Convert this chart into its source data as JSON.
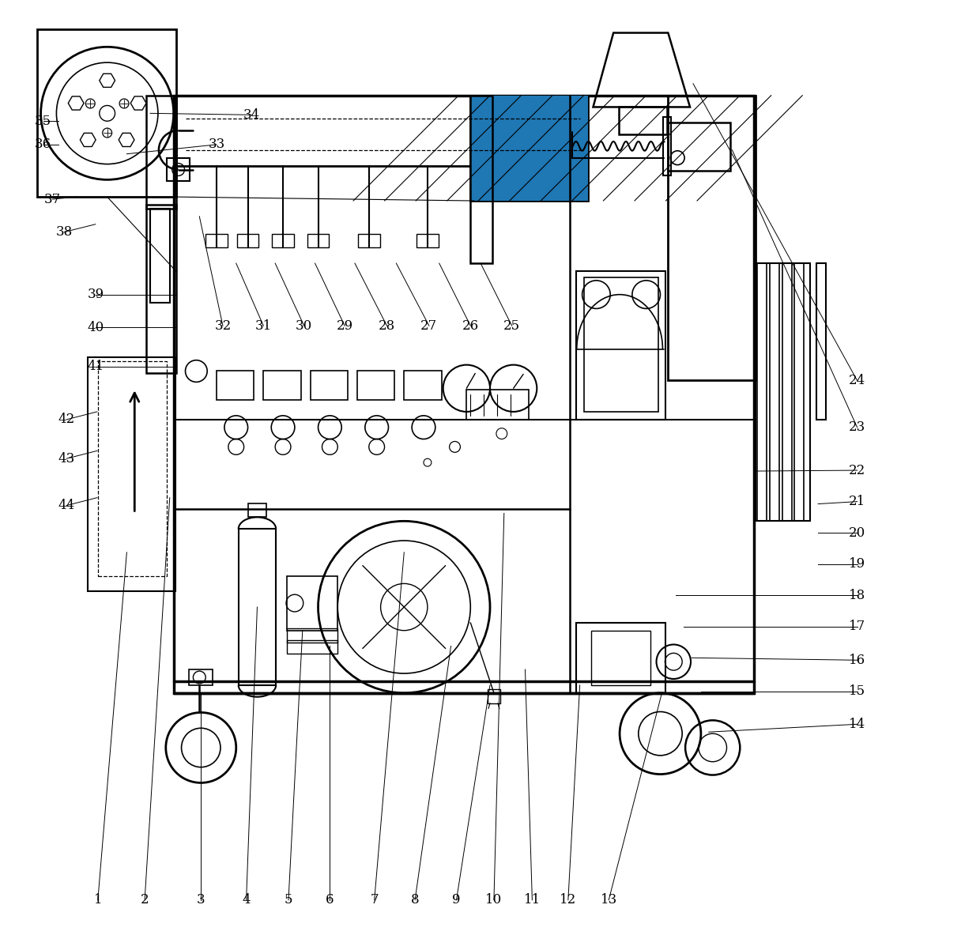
{
  "bg_color": "#ffffff",
  "line_color": "#000000",
  "fig_width": 12.4,
  "fig_height": 12.02
}
